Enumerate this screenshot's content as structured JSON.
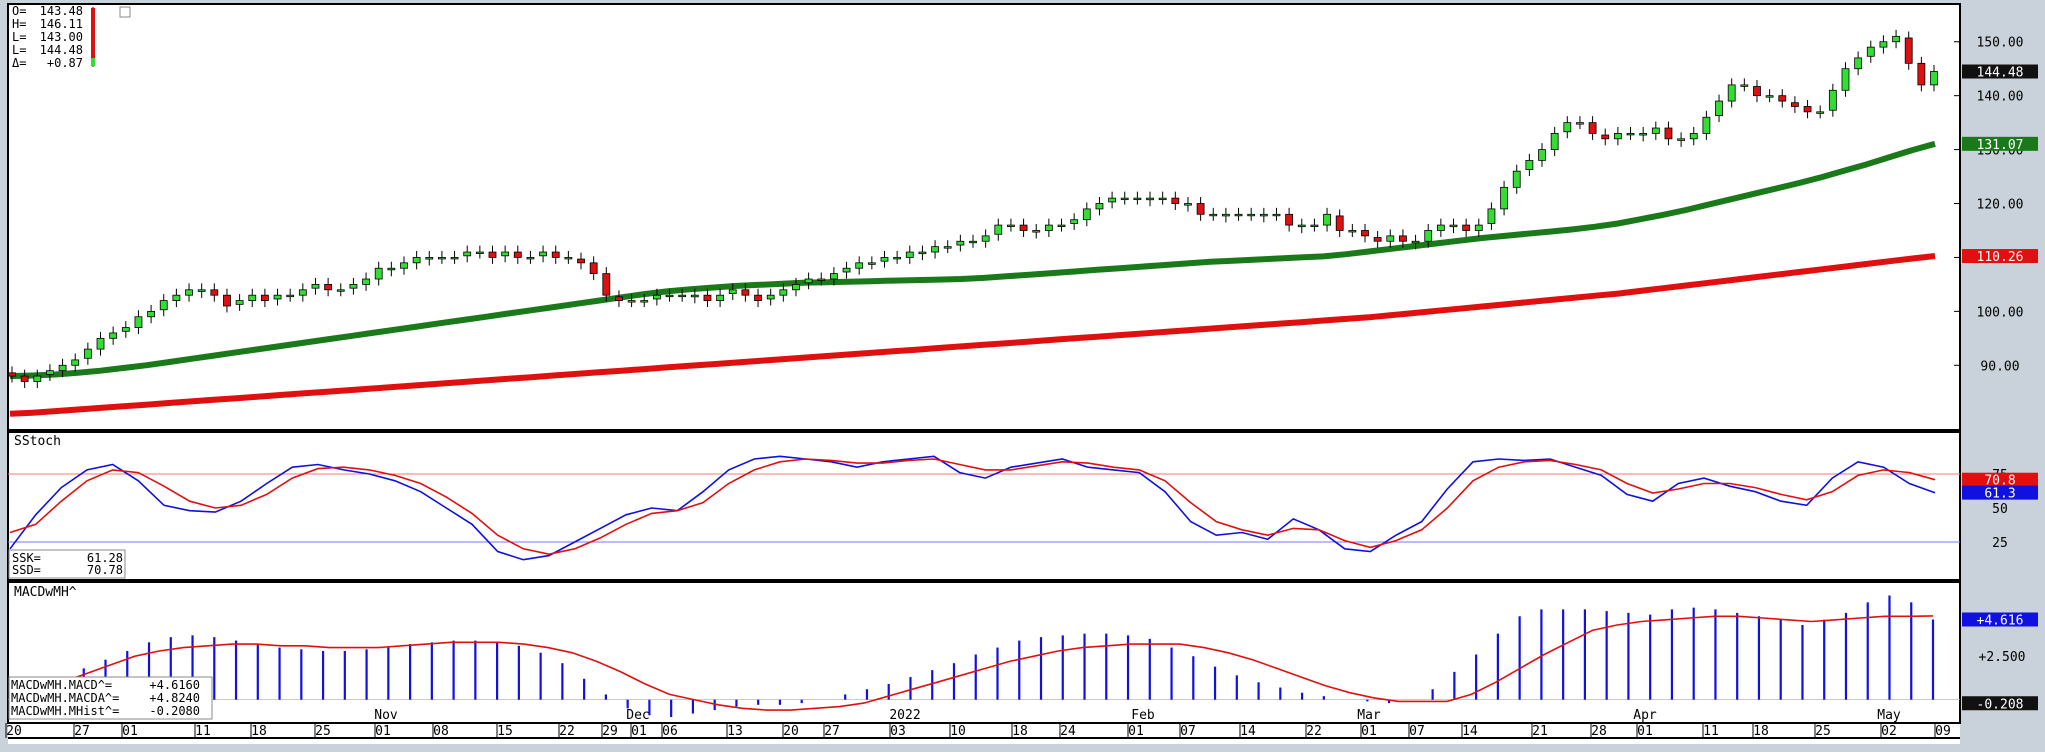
{
  "chart_data": [
    {
      "type": "candlestick",
      "title": "",
      "ylim": [
        78,
        157
      ],
      "y_ticks": [
        "150.00",
        "140.00",
        "130.00",
        "120.00",
        "110.00",
        "100.00",
        "90.00"
      ],
      "ohlc_readout": [
        {
          "label": "O=",
          "value": "143.48"
        },
        {
          "label": "H=",
          "value": "146.11"
        },
        {
          "label": "L=",
          "value": "143.00"
        },
        {
          "label": "L=",
          "value": "144.48"
        },
        {
          "label": "Δ=",
          "value": "+0.87"
        }
      ],
      "last_price": {
        "value": 144.48,
        "label": "144.48"
      },
      "candles_close": [
        88,
        87,
        88,
        89,
        90,
        91,
        93,
        95,
        96,
        97,
        99,
        100,
        102,
        103,
        104,
        104,
        103,
        101,
        102,
        103,
        102,
        103,
        103,
        104,
        105,
        104,
        104,
        105,
        106,
        108,
        108,
        109,
        110,
        110,
        110,
        110,
        111,
        111,
        110,
        111,
        110,
        110,
        111,
        110,
        110,
        109,
        107,
        103,
        102,
        102,
        102,
        103,
        103,
        103,
        103,
        102,
        103,
        104,
        103,
        102,
        103,
        104,
        105,
        106,
        106,
        107,
        108,
        109,
        109,
        110,
        110,
        111,
        111,
        112,
        112,
        113,
        113,
        114,
        116,
        116,
        115,
        115,
        116,
        116,
        117,
        119,
        120,
        121,
        121,
        121,
        121,
        121,
        120,
        120,
        118,
        118,
        118,
        118,
        118,
        118,
        118,
        116,
        116,
        116,
        118,
        115,
        115,
        114,
        113,
        114,
        113,
        113,
        115,
        116,
        116,
        115,
        116,
        119,
        123,
        126,
        128,
        130,
        133,
        135,
        135,
        133,
        132,
        133,
        133,
        133,
        134,
        132,
        132,
        133,
        136,
        139,
        142,
        142,
        140,
        140,
        139,
        138,
        137,
        137,
        141,
        145,
        147,
        149,
        150,
        151,
        146,
        142,
        144.48
      ],
      "series": [
        {
          "name": "",
          "color": "#1a7a1a",
          "values": [
            88,
            88.1,
            88.3,
            88.6,
            89,
            89.5,
            90,
            90.6,
            91.2,
            91.8,
            92.4,
            93,
            93.6,
            94.2,
            94.8,
            95.4,
            96,
            96.6,
            97.2,
            97.8,
            98.4,
            99,
            99.6,
            100.2,
            100.8,
            101.4,
            102,
            102.6,
            103.2,
            103.7,
            104.1,
            104.4,
            104.7,
            104.9,
            105.1,
            105.3,
            105.4,
            105.5,
            105.6,
            105.7,
            105.8,
            105.9,
            106,
            106.2,
            106.5,
            106.8,
            107.1,
            107.4,
            107.7,
            108,
            108.3,
            108.6,
            108.9,
            109.2,
            109.4,
            109.6,
            109.8,
            110,
            110.2,
            110.6,
            111.1,
            111.6,
            112.1,
            112.6,
            113.1,
            113.6,
            114,
            114.4,
            114.8,
            115.2,
            115.7,
            116.3,
            117.1,
            117.9,
            118.8,
            119.8,
            120.8,
            121.8,
            122.8,
            123.8,
            124.9,
            126.1,
            127.3,
            128.6,
            129.9,
            131.07
          ]
        },
        {
          "name": "",
          "color": "#e01010",
          "values": [
            81,
            81.2,
            81.5,
            81.8,
            82.1,
            82.4,
            82.7,
            83,
            83.3,
            83.6,
            83.9,
            84.2,
            84.5,
            84.8,
            85.1,
            85.4,
            85.7,
            86,
            86.3,
            86.6,
            86.9,
            87.2,
            87.5,
            87.8,
            88.1,
            88.4,
            88.7,
            89,
            89.3,
            89.6,
            89.9,
            90.2,
            90.5,
            90.8,
            91.1,
            91.4,
            91.7,
            92,
            92.3,
            92.6,
            92.9,
            93.2,
            93.5,
            93.8,
            94.1,
            94.4,
            94.7,
            95,
            95.3,
            95.6,
            95.9,
            96.2,
            96.5,
            96.8,
            97.1,
            97.4,
            97.7,
            98,
            98.3,
            98.6,
            98.9,
            99.3,
            99.7,
            100.1,
            100.5,
            100.9,
            101.3,
            101.7,
            102.1,
            102.5,
            102.9,
            103.3,
            103.8,
            104.3,
            104.8,
            105.3,
            105.8,
            106.3,
            106.8,
            107.3,
            107.8,
            108.3,
            108.8,
            109.3,
            109.8,
            110.26
          ]
        }
      ],
      "ma_labels": [
        {
          "value": 131.07,
          "label": "131.07",
          "color": "#1a7a1a"
        },
        {
          "value": 110.26,
          "label": "110.26",
          "color": "#e01010"
        }
      ]
    },
    {
      "type": "line",
      "title": "SStoch",
      "ylim": [
        0,
        100
      ],
      "y_ticks": [
        "75",
        "50",
        "25"
      ],
      "reference_lines": [
        75,
        25
      ],
      "series": [
        {
          "name": "SSK",
          "color": "#1010e0",
          "values": [
            20,
            45,
            65,
            78,
            82,
            70,
            52,
            48,
            47,
            55,
            68,
            80,
            82,
            78,
            75,
            70,
            62,
            50,
            38,
            18,
            12,
            15,
            25,
            35,
            45,
            50,
            48,
            62,
            78,
            86,
            88,
            86,
            84,
            80,
            84,
            86,
            88,
            76,
            72,
            80,
            83,
            86,
            80,
            78,
            76,
            62,
            40,
            30,
            32,
            27,
            42,
            34,
            20,
            18,
            30,
            40,
            64,
            84,
            86,
            85,
            86,
            80,
            74,
            60,
            55,
            68,
            72,
            66,
            62,
            55,
            52,
            72,
            84,
            80,
            68,
            61.28
          ]
        },
        {
          "name": "SSD",
          "color": "#e01010",
          "values": [
            32,
            38,
            55,
            70,
            78,
            76,
            66,
            55,
            50,
            52,
            60,
            72,
            79,
            80,
            78,
            74,
            68,
            58,
            46,
            30,
            20,
            16,
            20,
            28,
            38,
            46,
            48,
            54,
            68,
            78,
            84,
            86,
            85,
            83,
            83,
            85,
            86,
            82,
            78,
            78,
            81,
            84,
            83,
            80,
            78,
            70,
            54,
            40,
            34,
            30,
            35,
            34,
            26,
            21,
            26,
            34,
            50,
            70,
            80,
            84,
            85,
            82,
            78,
            68,
            61,
            64,
            68,
            68,
            65,
            60,
            56,
            62,
            74,
            78,
            76,
            70.78
          ]
        }
      ],
      "readout": [
        {
          "label": "SSK=",
          "value": "61.28"
        },
        {
          "label": "SSD=",
          "value": "70.78"
        }
      ],
      "last_labels": [
        {
          "value": 70.8,
          "label": "70.8",
          "color": "#e01010"
        },
        {
          "value": 61.3,
          "label": "61.3",
          "color": "#1010e0"
        }
      ]
    },
    {
      "type": "bar",
      "title": "MACDwMH^",
      "ylim": [
        -1.0,
        6.2
      ],
      "y_ticks": [
        "+2.500"
      ],
      "bars": [
        1.2,
        1.8,
        2.3,
        2.8,
        3.3,
        3.6,
        3.7,
        3.6,
        3.4,
        3.2,
        3.0,
        2.9,
        2.8,
        2.8,
        2.9,
        3.0,
        3.2,
        3.3,
        3.4,
        3.4,
        3.3,
        3.1,
        2.7,
        2.1,
        1.2,
        0.3,
        -0.5,
        -0.9,
        -1.0,
        -0.8,
        -0.6,
        -0.4,
        -0.3,
        -0.3,
        -0.2,
        0.0,
        0.3,
        0.6,
        0.9,
        1.3,
        1.7,
        2.1,
        2.6,
        3.0,
        3.4,
        3.6,
        3.7,
        3.8,
        3.8,
        3.7,
        3.5,
        3.0,
        2.5,
        1.9,
        1.4,
        1.0,
        0.7,
        0.4,
        0.2,
        0.0,
        -0.1,
        -0.2,
        0.0,
        0.6,
        1.6,
        2.6,
        3.8,
        4.8,
        5.2,
        5.2,
        5.2,
        5.1,
        5.0,
        4.9,
        5.2,
        5.3,
        5.2,
        5.0,
        4.8,
        4.6,
        4.3,
        4.6,
        5.0,
        5.6,
        6.0,
        5.6,
        4.616
      ],
      "series": [
        {
          "name": "MACDwMH.MACDA^",
          "color": "#e01010",
          "values": [
            1.0,
            1.5,
            2.0,
            2.5,
            2.8,
            3.0,
            3.1,
            3.2,
            3.2,
            3.1,
            3.1,
            3.0,
            3.0,
            3.0,
            3.1,
            3.2,
            3.3,
            3.3,
            3.3,
            3.2,
            3.0,
            2.7,
            2.2,
            1.6,
            0.9,
            0.3,
            0.0,
            -0.3,
            -0.5,
            -0.6,
            -0.6,
            -0.5,
            -0.4,
            -0.2,
            0.2,
            0.6,
            1.0,
            1.4,
            1.8,
            2.2,
            2.5,
            2.8,
            3.0,
            3.1,
            3.2,
            3.2,
            3.2,
            3.0,
            2.7,
            2.3,
            1.8,
            1.3,
            0.8,
            0.4,
            0.1,
            -0.1,
            -0.1,
            -0.1,
            0.3,
            1.0,
            1.8,
            2.6,
            3.3,
            4.0,
            4.3,
            4.5,
            4.6,
            4.7,
            4.8,
            4.8,
            4.7,
            4.6,
            4.5,
            4.6,
            4.7,
            4.8,
            4.8,
            4.824
          ]
        }
      ],
      "readout": [
        {
          "label": "MACDwMH.MACD^=",
          "value": "+4.6160"
        },
        {
          "label": "MACDwMH.MACDA^=",
          "value": "+4.8240"
        },
        {
          "label": "MACDwMH.MHist^=",
          "value": "-0.2080"
        }
      ],
      "last_labels": [
        {
          "value": 4.616,
          "label": "+4.616",
          "color": "#1010e0"
        },
        {
          "value": -0.208,
          "label": "-0.208",
          "color": "#111111"
        }
      ]
    }
  ],
  "x_axis": {
    "tick_labels": [
      "20",
      "27",
      "01",
      "11",
      "18",
      "25",
      "01",
      "08",
      "15",
      "22",
      "29",
      "01",
      "06",
      "13",
      "20",
      "27",
      "03",
      "10",
      "18",
      "24",
      "01",
      "07",
      "14",
      "22",
      "01",
      "07",
      "14",
      "21",
      "28",
      "01",
      "11",
      "18",
      "25",
      "02",
      "09"
    ],
    "month_labels": [
      "Nov",
      "Dec",
      "2022",
      "Feb",
      "Mar",
      "Apr",
      "May"
    ]
  }
}
